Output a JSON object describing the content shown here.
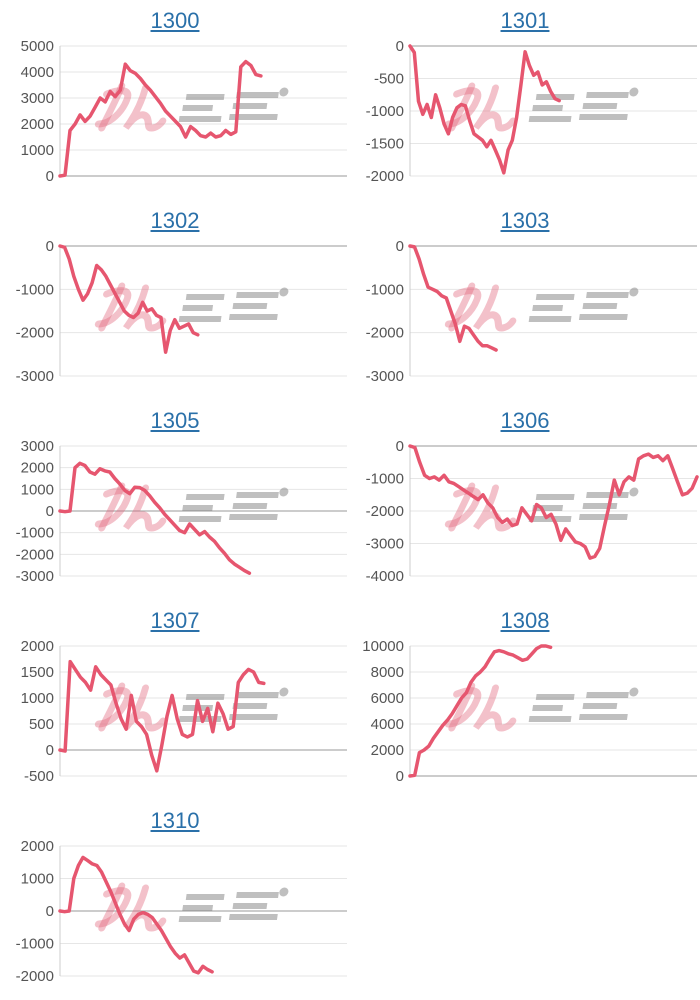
{
  "page": {
    "background": "#ffffff"
  },
  "style": {
    "line_color": "#e6566f",
    "grid_color": "#e6e6e6",
    "zero_line_color": "#9a9a9a",
    "axis_line_color": "#cccccc",
    "tick_label_color": "#555555",
    "title_color": "#2a70a9",
    "watermark_pink": "rgba(224,100,122,0.40)",
    "watermark_gray": "rgba(122,122,122,0.48)"
  },
  "watermark": {
    "name": "minrepo-logo-watermark"
  },
  "chart_data": [
    {
      "type": "line",
      "title": "1300",
      "ymin": 0,
      "ymax": 5000,
      "ytick": 1000,
      "grid": true,
      "x_extent": 0.7,
      "values": [
        0,
        30,
        1750,
        2000,
        2350,
        2100,
        2300,
        2650,
        3000,
        2850,
        3250,
        3050,
        3300,
        4300,
        4050,
        3950,
        3750,
        3500,
        3300,
        3050,
        2800,
        2500,
        2300,
        2100,
        1900,
        1500,
        1900,
        1750,
        1550,
        1500,
        1650,
        1500,
        1550,
        1750,
        1600,
        1700,
        4200,
        4400,
        4250,
        3900,
        3850
      ]
    },
    {
      "type": "line",
      "title": "1301",
      "ymin": -2000,
      "ymax": 0,
      "ytick": 500,
      "grid": true,
      "x_extent": 0.52,
      "values": [
        0,
        -100,
        -850,
        -1050,
        -900,
        -1100,
        -750,
        -950,
        -1200,
        -1350,
        -1100,
        -950,
        -900,
        -920,
        -1150,
        -1350,
        -1400,
        -1450,
        -1550,
        -1450,
        -1600,
        -1750,
        -1950,
        -1600,
        -1450,
        -1100,
        -600,
        -90,
        -300,
        -450,
        -400,
        -600,
        -550,
        -700,
        -810,
        -840
      ]
    },
    {
      "type": "line",
      "title": "1302",
      "ymin": -3000,
      "ymax": 0,
      "ytick": 1000,
      "grid": true,
      "x_extent": 0.48,
      "values": [
        0,
        -30,
        -300,
        -700,
        -1000,
        -1250,
        -1100,
        -850,
        -450,
        -550,
        -700,
        -900,
        -1100,
        -1300,
        -1500,
        -1600,
        -1650,
        -1550,
        -1300,
        -1500,
        -1450,
        -1600,
        -1650,
        -2450,
        -1950,
        -1700,
        -1900,
        -1850,
        -1800,
        -2000,
        -2050
      ]
    },
    {
      "type": "line",
      "title": "1303",
      "ymin": -3000,
      "ymax": 0,
      "ytick": 1000,
      "grid": true,
      "x_extent": 0.3,
      "values": [
        0,
        -20,
        -300,
        -650,
        -950,
        -1000,
        -1050,
        -1150,
        -1200,
        -1500,
        -1800,
        -2200,
        -1850,
        -1900,
        -2050,
        -2200,
        -2300,
        -2300,
        -2350,
        -2400
      ]
    },
    {
      "type": "line",
      "title": "1305",
      "ymin": -3000,
      "ymax": 3000,
      "ytick": 1000,
      "grid": true,
      "x_extent": 0.66,
      "values": [
        0,
        -30,
        0,
        2000,
        2200,
        2100,
        1800,
        1700,
        1950,
        1850,
        1800,
        1500,
        1250,
        950,
        800,
        1100,
        1080,
        950,
        700,
        400,
        150,
        -150,
        -400,
        -650,
        -900,
        -1000,
        -600,
        -850,
        -1100,
        -950,
        -1200,
        -1400,
        -1700,
        -1950,
        -2250,
        -2450,
        -2600,
        -2750,
        -2870
      ]
    },
    {
      "type": "line",
      "title": "1306",
      "ymin": -4000,
      "ymax": 0,
      "ytick": 1000,
      "grid": true,
      "x_extent": 1.0,
      "values": [
        0,
        -50,
        -500,
        -900,
        -1000,
        -950,
        -1050,
        -900,
        -1100,
        -1150,
        -1250,
        -1350,
        -1450,
        -1550,
        -1650,
        -1500,
        -1750,
        -1900,
        -2200,
        -2350,
        -2250,
        -2450,
        -2400,
        -1900,
        -2100,
        -2300,
        -1800,
        -1900,
        -2200,
        -2100,
        -2400,
        -2900,
        -2550,
        -2750,
        -2950,
        -3000,
        -3100,
        -3450,
        -3400,
        -3150,
        -2450,
        -1800,
        -1050,
        -1500,
        -1100,
        -950,
        -1050,
        -400,
        -300,
        -250,
        -350,
        -300,
        -450,
        -300,
        -700,
        -1100,
        -1500,
        -1450,
        -1300,
        -950
      ]
    },
    {
      "type": "line",
      "title": "1307",
      "ymin": -500,
      "ymax": 2000,
      "ytick": 500,
      "grid": true,
      "x_extent": 0.71,
      "values": [
        0,
        -20,
        1700,
        1550,
        1400,
        1300,
        1150,
        1600,
        1450,
        1350,
        1250,
        900,
        600,
        400,
        1050,
        550,
        450,
        300,
        -100,
        -400,
        100,
        650,
        1050,
        600,
        300,
        250,
        300,
        950,
        550,
        800,
        350,
        900,
        700,
        400,
        450,
        1300,
        1450,
        1550,
        1500,
        1300,
        1280
      ]
    },
    {
      "type": "line",
      "title": "1308",
      "ymin": 0,
      "ymax": 10000,
      "ytick": 2000,
      "grid": true,
      "x_extent": 0.49,
      "values": [
        0,
        50,
        1800,
        2000,
        2300,
        2900,
        3400,
        3900,
        4300,
        4800,
        5400,
        6000,
        6400,
        7200,
        7700,
        8000,
        8400,
        9000,
        9550,
        9650,
        9550,
        9400,
        9300,
        9100,
        8900,
        9000,
        9400,
        9800,
        10000,
        10000,
        9900
      ]
    },
    {
      "type": "line",
      "title": "1310",
      "ymin": -2000,
      "ymax": 2000,
      "ytick": 1000,
      "grid": true,
      "x_extent": 0.53,
      "values": [
        0,
        -20,
        0,
        1000,
        1400,
        1650,
        1550,
        1450,
        1400,
        1200,
        900,
        600,
        250,
        -100,
        -400,
        -600,
        -250,
        -100,
        -50,
        -100,
        -200,
        -400,
        -600,
        -850,
        -1100,
        -1300,
        -1450,
        -1350,
        -1600,
        -1850,
        -1900,
        -1700,
        -1800,
        -1870
      ]
    }
  ]
}
